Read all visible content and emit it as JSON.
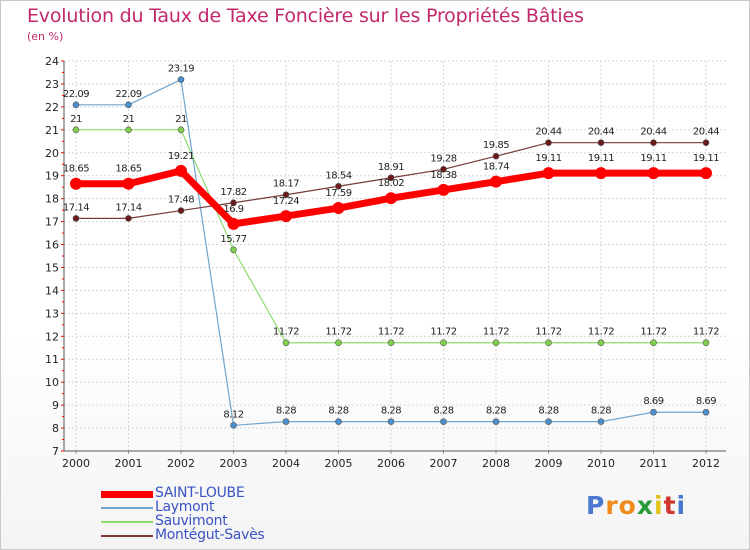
{
  "title": "Evolution du Taux de Taxe Foncière sur les Propriétés Bâties",
  "unit": "(en %)",
  "logo": {
    "letters": [
      "P",
      "r",
      "o",
      "x",
      "i",
      "t",
      "i"
    ],
    "colors": [
      "#4a78d0",
      "#f08a1c",
      "#f08a1c",
      "#2a9b3a",
      "#e3c21c",
      "#d0342c",
      "#4a78d0"
    ]
  },
  "chart_data": {
    "type": "line",
    "title": "Evolution du Taux de Taxe Foncière sur les Propriétés Bâties",
    "ylabel": "(en %)",
    "xlabel": "",
    "ylim": [
      7,
      24
    ],
    "yticks": [
      "7",
      "8",
      "9",
      "10",
      "11",
      "12",
      "13",
      "14",
      "15",
      "16",
      "17",
      "18",
      "19",
      "20",
      "21",
      "22",
      "23",
      "24"
    ],
    "categories": [
      "2000",
      "2001",
      "2002",
      "2003",
      "2004",
      "2005",
      "2006",
      "2007",
      "2008",
      "2009",
      "2010",
      "2011",
      "2012"
    ],
    "grid": true,
    "legend": "bottom-left",
    "series": [
      {
        "name": "SAINT-LOUBE",
        "color": "#ff0000",
        "values": [
          18.65,
          18.65,
          19.21,
          16.9,
          17.24,
          17.59,
          18.02,
          18.38,
          18.74,
          19.11,
          19.11,
          19.11,
          19.11
        ],
        "labels": [
          "18.65",
          "18.65",
          "19.21",
          "16.9",
          "17.24",
          "17.59",
          "18.02",
          "18.38",
          "18.74",
          "19.11",
          "19.11",
          "19.11",
          "19.11"
        ]
      },
      {
        "name": "Laymont",
        "color": "#6fa6d0",
        "values": [
          22.09,
          22.09,
          23.19,
          8.12,
          8.28,
          8.28,
          8.28,
          8.28,
          8.28,
          8.28,
          8.28,
          8.69,
          8.69
        ],
        "labels": [
          "22.09",
          "22.09",
          "23.19",
          "8.12",
          "8.28",
          "8.28",
          "8.28",
          "8.28",
          "8.28",
          "8.28",
          "8.28",
          "8.69",
          "8.69"
        ]
      },
      {
        "name": "Sauvimont",
        "color": "#8cdc6c",
        "values": [
          21,
          21,
          21,
          15.77,
          11.72,
          11.72,
          11.72,
          11.72,
          11.72,
          11.72,
          11.72,
          11.72,
          11.72
        ],
        "labels": [
          "21",
          "21",
          "21",
          "15.77",
          "11.72",
          "11.72",
          "11.72",
          "11.72",
          "11.72",
          "11.72",
          "11.72",
          "11.72",
          "11.72"
        ]
      },
      {
        "name": "Montégut-Savès",
        "color": "#7a3a3a",
        "values": [
          17.14,
          17.14,
          17.48,
          17.82,
          18.17,
          18.54,
          18.91,
          19.28,
          19.85,
          20.44,
          20.44,
          20.44,
          20.44
        ],
        "labels": [
          "17.14",
          "17.14",
          "17.48",
          "17.82",
          "18.17",
          "18.54",
          "18.91",
          "19.28",
          "19.85",
          "20.44",
          "20.44",
          "20.44",
          "20.44"
        ]
      }
    ]
  }
}
